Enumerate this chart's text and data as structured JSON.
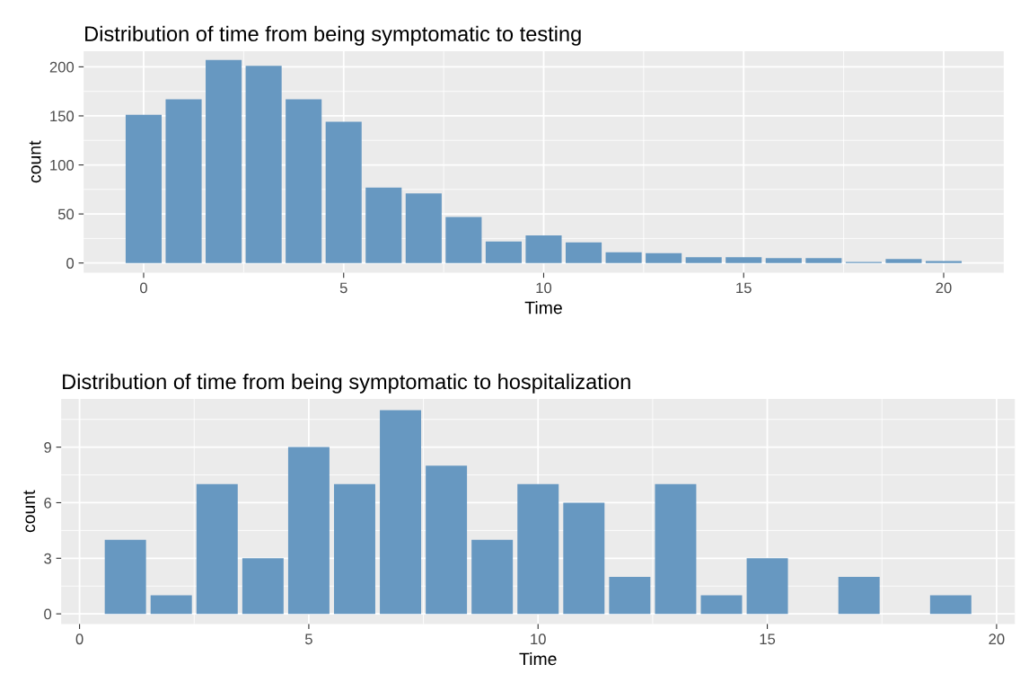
{
  "chart_data": [
    {
      "type": "bar",
      "title": "Distribution of time from being symptomatic to testing",
      "xlabel": "Time",
      "ylabel": "count",
      "x": [
        0,
        1,
        2,
        3,
        4,
        5,
        6,
        7,
        8,
        9,
        10,
        11,
        12,
        13,
        14,
        15,
        16,
        17,
        18,
        19,
        20
      ],
      "values": [
        151,
        167,
        207,
        201,
        167,
        144,
        77,
        71,
        47,
        22,
        28,
        21,
        11,
        10,
        6,
        6,
        5,
        5,
        1,
        4,
        2
      ],
      "color": "#6798c1",
      "xlim": [
        -1.5,
        21.5
      ],
      "ylim": [
        -10,
        216
      ],
      "xticks": [
        0,
        5,
        10,
        15,
        20
      ],
      "yticks": [
        0,
        50,
        100,
        150,
        200
      ],
      "grid": true
    },
    {
      "type": "bar",
      "title": "Distribution of time from being symptomatic to hospitalization",
      "xlabel": "Time",
      "ylabel": "count",
      "x": [
        1,
        2,
        3,
        4,
        5,
        6,
        7,
        8,
        9,
        10,
        11,
        12,
        13,
        14,
        15,
        16,
        17,
        18,
        19
      ],
      "values": [
        4,
        1,
        7,
        3,
        9,
        7,
        11,
        8,
        4,
        7,
        6,
        2,
        7,
        1,
        3,
        null,
        2,
        null,
        1
      ],
      "color": "#6798c1",
      "xlim": [
        -0.4,
        20.4
      ],
      "ylim": [
        -0.55,
        11.6
      ],
      "xticks": [
        0,
        5,
        10,
        15,
        20
      ],
      "yticks": [
        0,
        3,
        6,
        9
      ],
      "grid": true
    }
  ]
}
